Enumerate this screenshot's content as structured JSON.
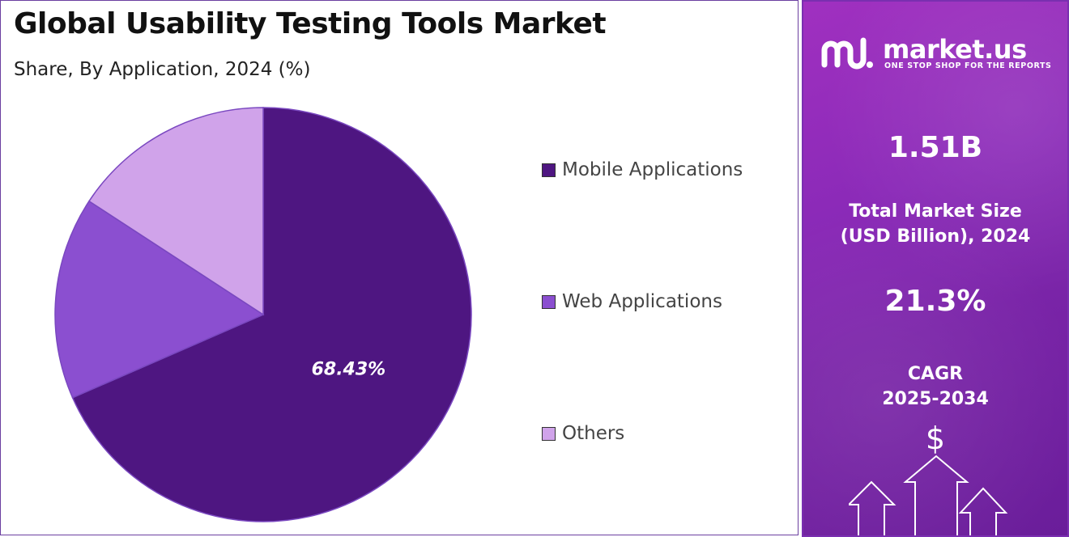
{
  "header": {
    "title": "Global Usability Testing Tools Market",
    "subtitle": "Share, By Application, 2024 (%)"
  },
  "chart_data": {
    "type": "pie",
    "categories": [
      "Mobile Applications",
      "Web Applications",
      "Others"
    ],
    "values": [
      68.43,
      15.8,
      15.77
    ],
    "colors": [
      "#4e1681",
      "#8b4fd0",
      "#d0a3ea"
    ],
    "data_labels": [
      "68.43%",
      "",
      ""
    ],
    "legend_position": "right",
    "title": "Global Usability Testing Tools Market",
    "subtitle": "Share, By Application, 2024 (%)"
  },
  "brand": {
    "name": "market.us",
    "tagline": "ONE STOP SHOP FOR THE REPORTS",
    "logo_icon": "market-us-logo-icon"
  },
  "stats": {
    "market_size_value": "1.51B",
    "market_size_label_line1": "Total Market Size",
    "market_size_label_line2": "(USD Billion), 2024",
    "cagr_value": "21.3%",
    "cagr_label_line1": "CAGR",
    "cagr_label_line2": "2025-2034"
  },
  "decor": {
    "dollar_symbol": "$",
    "arrow_icon": "up-arrow-icon"
  }
}
